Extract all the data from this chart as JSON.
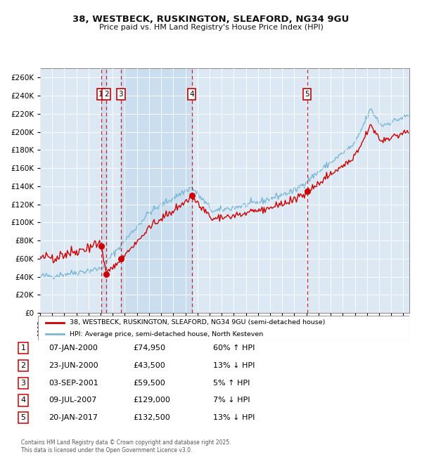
{
  "title_line1": "38, WESTBECK, RUSKINGTON, SLEAFORD, NG34 9GU",
  "title_line2": "Price paid vs. HM Land Registry's House Price Index (HPI)",
  "xlim_start": 1995.0,
  "xlim_end": 2025.5,
  "ylim_min": 0,
  "ylim_max": 270000,
  "ytick_step": 20000,
  "sale_color": "#cc0000",
  "hpi_color": "#7ab8d4",
  "background_color": "#dce9f5",
  "grid_color": "#ffffff",
  "shade_color": "#c0d8ec",
  "sale_legend": "38, WESTBECK, RUSKINGTON, SLEAFORD, NG34 9GU (semi-detached house)",
  "hpi_legend": "HPI: Average price, semi-detached house, North Kesteven",
  "transactions": [
    {
      "num": 1,
      "date": "07-JAN-2000",
      "price": 74950,
      "pct": "60%",
      "dir": "↑",
      "year": 2000.03
    },
    {
      "num": 2,
      "date": "23-JUN-2000",
      "price": 43500,
      "pct": "13%",
      "dir": "↓",
      "year": 2000.47
    },
    {
      "num": 3,
      "date": "03-SEP-2001",
      "price": 59500,
      "pct": "5%",
      "dir": "↑",
      "year": 2001.67
    },
    {
      "num": 4,
      "date": "09-JUL-2007",
      "price": 129000,
      "pct": "7%",
      "dir": "↓",
      "year": 2007.52
    },
    {
      "num": 5,
      "date": "20-JAN-2017",
      "price": 132500,
      "pct": "13%",
      "dir": "↓",
      "year": 2017.05
    }
  ],
  "footnote_line1": "Contains HM Land Registry data © Crown copyright and database right 2025.",
  "footnote_line2": "This data is licensed under the Open Government Licence v3.0."
}
